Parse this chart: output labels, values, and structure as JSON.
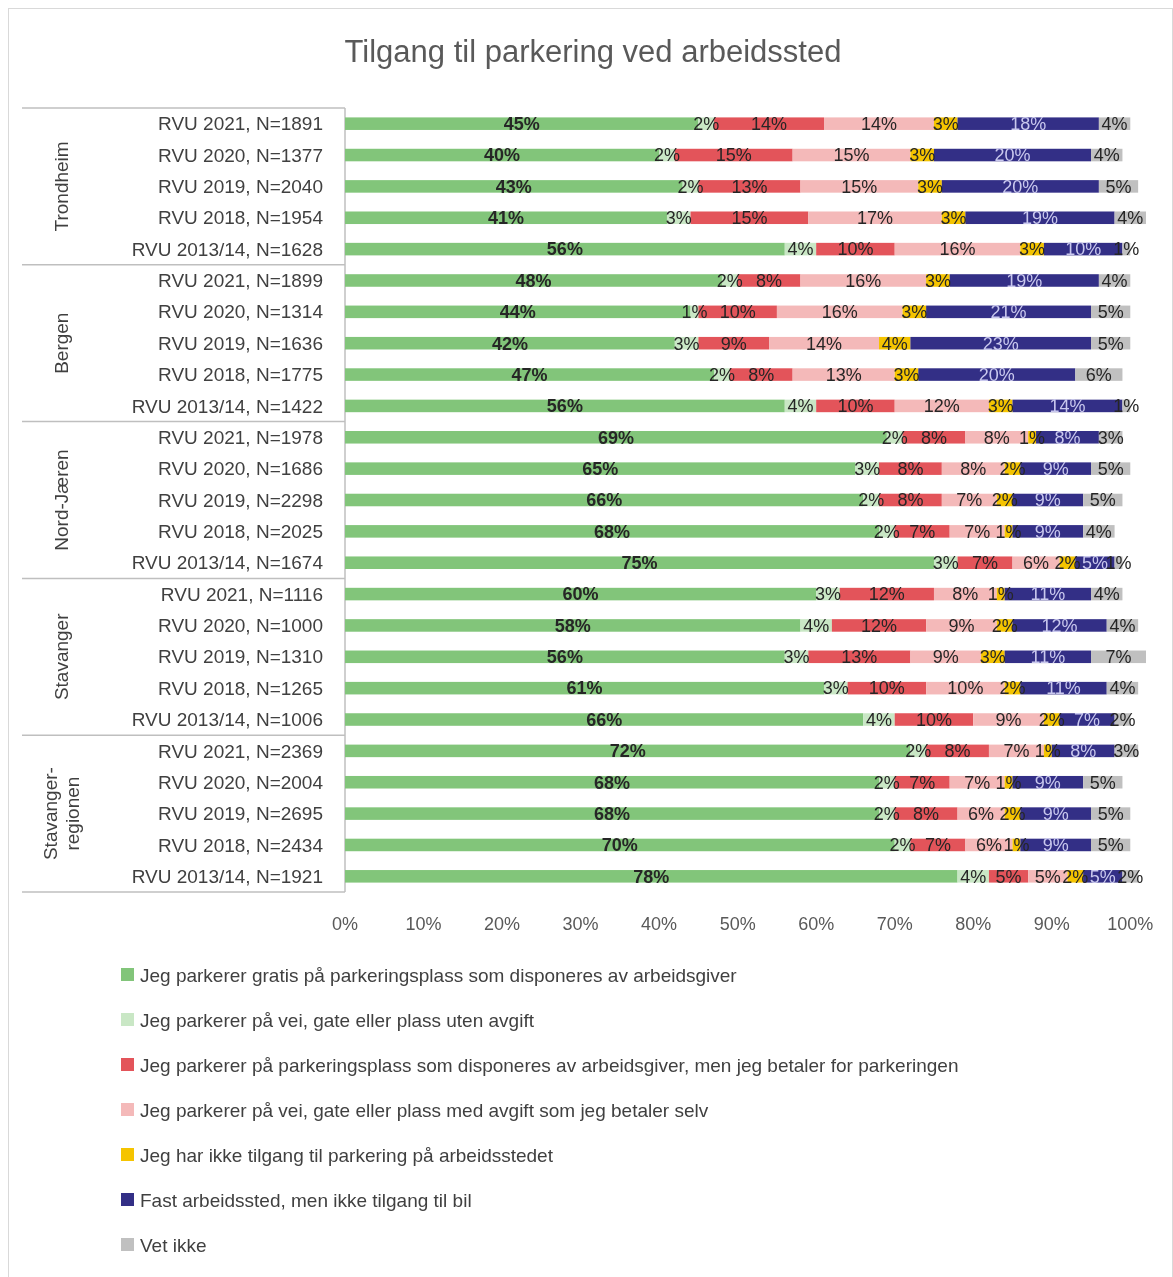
{
  "chart_data": {
    "type": "bar",
    "orientation": "horizontal",
    "stacked": true,
    "title": "Tilgang til parkering ved arbeidssted",
    "categories": [
      "RVU 2021, N=1891",
      "RVU 2020, N=1377",
      "RVU 2019, N=2040",
      "RVU 2018, N=1954",
      "RVU 2013/14, N=1628",
      "RVU 2021, N=1899",
      "RVU 2020, N=1314",
      "RVU 2019, N=1636",
      "RVU 2018, N=1775",
      "RVU 2013/14, N=1422",
      "RVU 2021, N=1978",
      "RVU 2020, N=1686",
      "RVU 2019, N=2298",
      "RVU 2018, N=2025",
      "RVU 2013/14, N=1674",
      "RVU 2021, N=1116",
      "RVU 2020, N=1000",
      "RVU 2019, N=1310",
      "RVU 2018, N=1265",
      "RVU 2013/14, N=1006",
      "RVU 2021, N=2369",
      "RVU 2020, N=2004",
      "RVU 2019, N=2695",
      "RVU 2018, N=2434",
      "RVU 2013/14, N=1921"
    ],
    "annotations": [
      "Trondheim",
      "Bergen",
      "Nord-Jæren",
      "Stavanger",
      "Stavanger-regionen"
    ],
    "xlim": [
      0,
      102
    ],
    "xticks": [
      {
        "value": 0,
        "label": "0%"
      },
      {
        "value": 10,
        "label": "10%"
      },
      {
        "value": 20,
        "label": "20%"
      },
      {
        "value": 30,
        "label": "30%"
      },
      {
        "value": 40,
        "label": "40%"
      },
      {
        "value": 50,
        "label": "50%"
      },
      {
        "value": 60,
        "label": "60%"
      },
      {
        "value": 70,
        "label": "70%"
      },
      {
        "value": 80,
        "label": "80%"
      },
      {
        "value": 90,
        "label": "90%"
      },
      {
        "value": 100,
        "label": "100%"
      }
    ],
    "legend": "bottom",
    "series": [
      {
        "name": "Jeg parkerer gratis på parkeringsplass som disponeres av arbeidsgiver",
        "color": "#82c57a",
        "values": [
          45,
          40,
          43,
          41,
          56,
          48,
          44,
          42,
          47,
          56,
          69,
          65,
          66,
          68,
          75,
          60,
          58,
          56,
          61,
          66,
          72,
          68,
          68,
          70,
          78
        ],
        "value_labels": [
          "45%",
          "40%",
          "43%",
          "41%",
          "56%",
          "48%",
          "44%",
          "42%",
          "47%",
          "56%",
          "69%",
          "65%",
          "66%",
          "68%",
          "75%",
          "60%",
          "58%",
          "56%",
          "61%",
          "66%",
          "72%",
          "68%",
          "68%",
          "70%",
          "78%"
        ]
      },
      {
        "name": "Jeg parkerer på vei, gate eller plass uten avgift",
        "color": "#c9e7c5",
        "values": [
          2,
          2,
          2,
          3,
          4,
          2,
          1,
          3,
          2,
          4,
          2,
          3,
          2,
          2,
          3,
          3,
          4,
          3,
          3,
          4,
          2,
          2,
          2,
          2,
          4
        ],
        "value_labels": [
          "2%",
          "2%",
          "2%",
          "3%",
          "4%",
          "2%",
          "1%",
          "3%",
          "2%",
          "4%",
          "2%",
          "3%",
          "2%",
          "2%",
          "3%",
          "3%",
          "4%",
          "3%",
          "3%",
          "4%",
          "2%",
          "2%",
          "2%",
          "2%",
          "4%"
        ]
      },
      {
        "name": "Jeg parkerer på parkeringsplass som disponeres av arbeidsgiver, men jeg betaler for parkeringen",
        "color": "#e3545a",
        "values": [
          14,
          15,
          13,
          15,
          10,
          8,
          10,
          9,
          8,
          10,
          8,
          8,
          8,
          7,
          7,
          12,
          12,
          13,
          10,
          10,
          8,
          7,
          8,
          7,
          5
        ],
        "value_labels": [
          "14%",
          "15%",
          "13%",
          "15%",
          "10%",
          "8%",
          "10%",
          "9%",
          "8%",
          "10%",
          "8%",
          "8%",
          "8%",
          "7%",
          "7%",
          "12%",
          "12%",
          "13%",
          "10%",
          "10%",
          "8%",
          "7%",
          "8%",
          "7%",
          "5%"
        ]
      },
      {
        "name": "Jeg parkerer på vei, gate eller plass med avgift som jeg betaler selv",
        "color": "#f4b9b9",
        "values": [
          14,
          15,
          15,
          17,
          16,
          16,
          16,
          14,
          13,
          12,
          8,
          8,
          7,
          7,
          6,
          8,
          9,
          9,
          10,
          9,
          7,
          7,
          6,
          6,
          5
        ],
        "value_labels": [
          "14%",
          "15%",
          "15%",
          "17%",
          "16%",
          "16%",
          "16%",
          "14%",
          "13%",
          "12%",
          "8%",
          "8%",
          "7%",
          "7%",
          "6%",
          "8%",
          "9%",
          "9%",
          "10%",
          "9%",
          "7%",
          "7%",
          "6%",
          "6%",
          "5%"
        ]
      },
      {
        "name": "Jeg har ikke tilgang til parkering på arbeidsstedet",
        "color": "#f5c400",
        "values": [
          3,
          3,
          3,
          3,
          3,
          3,
          3,
          4,
          3,
          3,
          1,
          2,
          2,
          1,
          2,
          1,
          2,
          3,
          2,
          2,
          1,
          1,
          2,
          1,
          2
        ],
        "value_labels": [
          "3%",
          "3%",
          "3%",
          "3%",
          "3%",
          "3%",
          "3%",
          "4%",
          "3%",
          "3%",
          "1%",
          "2%",
          "2%",
          "1%",
          "2%",
          "1%",
          "2%",
          "3%",
          "2%",
          "2%",
          "1%",
          "1%",
          "2%",
          "1%",
          "2%"
        ]
      },
      {
        "name": "Fast arbeidssted, men ikke tilgang til bil",
        "color": "#332f86",
        "values": [
          18,
          20,
          20,
          19,
          10,
          19,
          21,
          23,
          20,
          14,
          8,
          9,
          9,
          9,
          5,
          11,
          12,
          11,
          11,
          7,
          8,
          9,
          9,
          9,
          5
        ],
        "value_labels": [
          "18%",
          "20%",
          "20%",
          "19%",
          "10%",
          "19%",
          "21%",
          "23%",
          "20%",
          "14%",
          "8%",
          "9%",
          "9%",
          "9%",
          "5%",
          "11%",
          "12%",
          "11%",
          "11%",
          "7%",
          "8%",
          "9%",
          "9%",
          "9%",
          "5%"
        ]
      },
      {
        "name": "Vet ikke",
        "color": "#c0c0c0",
        "values": [
          4,
          4,
          5,
          4,
          1,
          4,
          5,
          5,
          6,
          1,
          3,
          5,
          5,
          4,
          1,
          4,
          4,
          7,
          4,
          2,
          3,
          5,
          5,
          5,
          2
        ],
        "value_labels": [
          "4%",
          "4%",
          "5%",
          "4%",
          "1%",
          "4%",
          "5%",
          "5%",
          "6%",
          "1%",
          "3%",
          "5%",
          "5%",
          "4%",
          "1%",
          "4%",
          "4%",
          "7%",
          "4%",
          "2%",
          "3%",
          "5%",
          "5%",
          "5%",
          "2%"
        ]
      }
    ]
  }
}
